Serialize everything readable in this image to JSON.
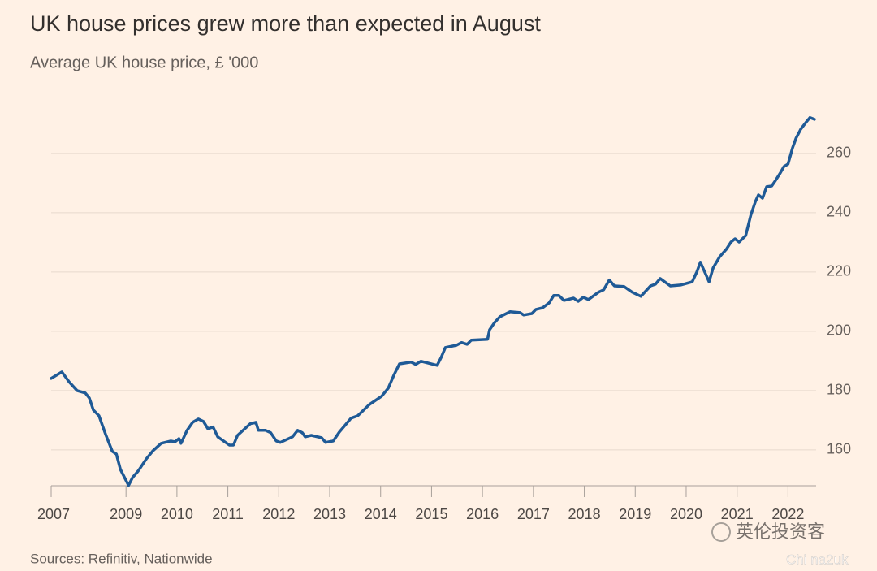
{
  "chart_data": {
    "type": "line",
    "title": "UK house prices grew more than expected in August",
    "subtitle": "Average UK house price, £ '000",
    "source": "Sources: Refinitiv, Nationwide",
    "watermark": [
      "英伦投资客",
      "Chi na2uk"
    ],
    "xlim": [
      2007.53,
      2022.52
    ],
    "xticks": [
      {
        "value": 2007.53,
        "label": "2007"
      },
      2009,
      2010,
      2011,
      2012,
      2013,
      2014,
      2015,
      2016,
      2017,
      2018,
      2019,
      2020,
      2021,
      2022
    ],
    "ylim": [
      147.9,
      273.4
    ],
    "yticks": [
      160,
      180,
      200,
      220,
      240,
      260
    ],
    "grid": true,
    "series": [
      {
        "name": "Average UK house price",
        "color": "#1f5a96",
        "x": [
          2007.53,
          2007.74,
          2007.88,
          2008.04,
          2008.2,
          2008.28,
          2008.36,
          2008.47,
          2008.6,
          2008.73,
          2008.81,
          2008.89,
          2009.05,
          2009.13,
          2009.24,
          2009.4,
          2009.53,
          2009.69,
          2009.88,
          2009.96,
          2010.04,
          2010.08,
          2010.2,
          2010.31,
          2010.42,
          2010.52,
          2010.61,
          2010.71,
          2010.8,
          2011.03,
          2011.11,
          2011.19,
          2011.44,
          2011.55,
          2011.6,
          2011.74,
          2011.84,
          2011.95,
          2012.03,
          2012.27,
          2012.37,
          2012.46,
          2012.52,
          2012.64,
          2012.84,
          2012.92,
          2013.07,
          2013.19,
          2013.42,
          2013.55,
          2013.78,
          2014.02,
          2014.15,
          2014.26,
          2014.37,
          2014.6,
          2014.69,
          2014.79,
          2015.11,
          2015.19,
          2015.27,
          2015.49,
          2015.59,
          2015.7,
          2015.78,
          2016.1,
          2016.14,
          2016.24,
          2016.34,
          2016.54,
          2016.74,
          2016.81,
          2016.97,
          2017.05,
          2017.18,
          2017.31,
          2017.4,
          2017.5,
          2017.6,
          2017.79,
          2017.88,
          2017.98,
          2018.08,
          2018.28,
          2018.38,
          2018.49,
          2018.59,
          2018.78,
          2018.94,
          2019.11,
          2019.3,
          2019.4,
          2019.49,
          2019.69,
          2019.89,
          2020.12,
          2020.21,
          2020.28,
          2020.45,
          2020.53,
          2020.66,
          2020.79,
          2020.88,
          2020.96,
          2021.04,
          2021.17,
          2021.27,
          2021.36,
          2021.42,
          2021.5,
          2021.58,
          2021.68,
          2021.76,
          2021.84,
          2021.92,
          2022.0,
          2022.09,
          2022.16,
          2022.25,
          2022.35,
          2022.43,
          2022.52
        ],
        "values": [
          184.1,
          186.3,
          183.0,
          180.0,
          179.2,
          177.5,
          173.4,
          171.5,
          165.2,
          159.5,
          158.6,
          153.4,
          148.0,
          150.7,
          152.9,
          157.0,
          159.7,
          162.2,
          163.0,
          162.7,
          163.8,
          162.2,
          166.6,
          169.3,
          170.4,
          169.6,
          167.1,
          167.7,
          164.4,
          161.6,
          161.6,
          164.9,
          168.8,
          169.3,
          166.6,
          166.6,
          165.8,
          163.0,
          162.5,
          164.4,
          166.6,
          165.8,
          164.4,
          164.9,
          164.1,
          162.5,
          163.0,
          166.0,
          170.7,
          171.5,
          175.3,
          178.1,
          180.8,
          185.2,
          189.0,
          189.6,
          188.8,
          189.9,
          188.5,
          191.2,
          194.5,
          195.3,
          196.2,
          195.6,
          197.0,
          197.3,
          200.5,
          203.0,
          204.9,
          206.6,
          206.3,
          205.5,
          206.0,
          207.4,
          207.9,
          209.6,
          212.1,
          212.1,
          210.4,
          211.2,
          210.1,
          211.5,
          210.7,
          213.2,
          214.0,
          217.3,
          215.3,
          215.1,
          213.2,
          211.8,
          215.3,
          215.9,
          217.8,
          215.3,
          215.6,
          216.7,
          220.0,
          223.3,
          216.7,
          221.4,
          225.2,
          227.7,
          230.1,
          231.2,
          230.1,
          232.3,
          239.2,
          243.8,
          246.0,
          244.9,
          248.8,
          249.0,
          251.0,
          253.2,
          255.6,
          256.4,
          261.9,
          265.2,
          268.2,
          270.4,
          272.1,
          271.5
        ]
      }
    ]
  }
}
